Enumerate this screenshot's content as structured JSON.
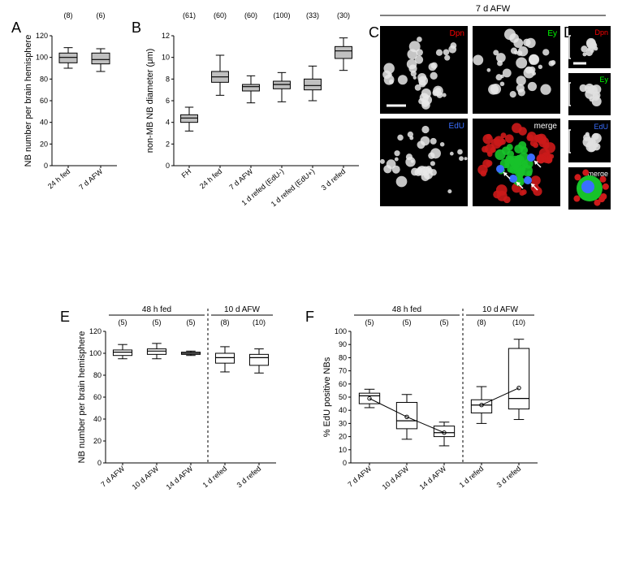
{
  "panelA": {
    "label": "A",
    "yLabel": "NB number per brain hemisphere",
    "ylim": [
      0,
      120
    ],
    "ytick_step": 20,
    "categories": [
      "24 h fed",
      "7 d AFW"
    ],
    "sample_n": [
      "(8)",
      "(6)"
    ],
    "boxes": [
      {
        "whisker_lo": 90,
        "q1": 95,
        "median": 100,
        "q3": 104,
        "whisker_hi": 109
      },
      {
        "whisker_lo": 87,
        "q1": 94,
        "median": 98,
        "q3": 104,
        "whisker_hi": 108
      }
    ],
    "box_fill": "#c0c0c0",
    "box_stroke": "#000000",
    "label_fontsize": 11
  },
  "panelB": {
    "label": "B",
    "yLabel": "non-MB NB diameter (μm)",
    "ylim": [
      0,
      12
    ],
    "ytick_step": 2,
    "categories": [
      "FH",
      "24 h fed",
      "7 d AFW",
      "1 d refed (EdU-)",
      "1 d refed (EdU+)",
      "3 d refed"
    ],
    "sample_n": [
      "(61)",
      "(60)",
      "(60)",
      "(100)",
      "(33)",
      "(30)"
    ],
    "boxes": [
      {
        "whisker_lo": 3.2,
        "q1": 4.0,
        "median": 4.4,
        "q3": 4.7,
        "whisker_hi": 5.4
      },
      {
        "whisker_lo": 6.5,
        "q1": 7.7,
        "median": 8.2,
        "q3": 8.7,
        "whisker_hi": 10.2
      },
      {
        "whisker_lo": 5.8,
        "q1": 6.9,
        "median": 7.3,
        "q3": 7.5,
        "whisker_hi": 8.3
      },
      {
        "whisker_lo": 5.9,
        "q1": 7.1,
        "median": 7.5,
        "q3": 7.8,
        "whisker_hi": 8.6
      },
      {
        "whisker_lo": 6.0,
        "q1": 7.0,
        "median": 7.4,
        "q3": 8.0,
        "whisker_hi": 9.2
      },
      {
        "whisker_lo": 8.8,
        "q1": 9.9,
        "median": 10.6,
        "q3": 11.0,
        "whisker_hi": 11.8
      }
    ],
    "box_fill": "#c0c0c0",
    "box_stroke": "#000000"
  },
  "panelC": {
    "label": "C",
    "header": "7 d AFW",
    "channels": [
      {
        "name": "Dpn",
        "color": "#ff0000"
      },
      {
        "name": "Ey",
        "color": "#00ff00"
      },
      {
        "name": "EdU",
        "color": "#3a6fff"
      },
      {
        "name": "merge",
        "color": "#ffffff"
      }
    ],
    "scale_bar": true
  },
  "panelD": {
    "label": "D",
    "channels": [
      {
        "name": "Dpn",
        "color": "#ff0000"
      },
      {
        "name": "Ey",
        "color": "#00ff00"
      },
      {
        "name": "EdU",
        "color": "#3a6fff"
      },
      {
        "name": "merge",
        "color": "#ffffff"
      }
    ]
  },
  "panelE": {
    "label": "E",
    "yLabel": "NB number per brain hemisphere",
    "ylim": [
      0,
      120
    ],
    "ytick_step": 20,
    "group1_label": "48 h fed",
    "group2_label": "10 d AFW",
    "categories": [
      "7 d AFW",
      "10 d AFW",
      "14 d AFW",
      "1 d refed",
      "3 d refed"
    ],
    "sample_n": [
      "(5)",
      "(5)",
      "(5)",
      "(8)",
      "(10)"
    ],
    "boxes": [
      {
        "whisker_lo": 95,
        "q1": 98,
        "median": 101,
        "q3": 103,
        "whisker_hi": 108
      },
      {
        "whisker_lo": 95,
        "q1": 99,
        "median": 102,
        "q3": 104,
        "whisker_hi": 109
      },
      {
        "whisker_lo": 98,
        "q1": 99,
        "median": 100,
        "q3": 101,
        "whisker_hi": 102
      },
      {
        "whisker_lo": 83,
        "q1": 91,
        "median": 96,
        "q3": 100,
        "whisker_hi": 106
      },
      {
        "whisker_lo": 82,
        "q1": 89,
        "median": 96,
        "q3": 99,
        "whisker_hi": 104
      }
    ],
    "box_fill": "#ffffff",
    "box_stroke": "#000000",
    "divider_after_index": 3
  },
  "panelF": {
    "label": "F",
    "yLabel": "% EdU positive NBs",
    "ylim": [
      0,
      100
    ],
    "ytick_step": 10,
    "group1_label": "48 h fed",
    "group2_label": "10 d AFW",
    "categories": [
      "7 d AFW",
      "10 d AFW",
      "14 d AFW",
      "1 d refed",
      "3 d refed"
    ],
    "sample_n": [
      "(5)",
      "(5)",
      "(5)",
      "(8)",
      "(10)"
    ],
    "boxes": [
      {
        "whisker_lo": 42,
        "q1": 45,
        "median": 51,
        "q3": 53,
        "whisker_hi": 56,
        "mean": 49
      },
      {
        "whisker_lo": 18,
        "q1": 26,
        "median": 32,
        "q3": 46,
        "whisker_hi": 52,
        "mean": 35
      },
      {
        "whisker_lo": 13,
        "q1": 20,
        "median": 23,
        "q3": 28,
        "whisker_hi": 31,
        "mean": 23
      },
      {
        "whisker_lo": 30,
        "q1": 38,
        "median": 44,
        "q3": 48,
        "whisker_hi": 58,
        "mean": 44
      },
      {
        "whisker_lo": 33,
        "q1": 41,
        "median": 49,
        "q3": 87,
        "whisker_hi": 94,
        "mean": 57
      }
    ],
    "trend_lines": [
      [
        0,
        1,
        2
      ],
      [
        3,
        4
      ]
    ],
    "box_fill": "#ffffff",
    "box_stroke": "#000000",
    "divider_after_index": 3
  },
  "colors": {
    "background": "#ffffff",
    "axis": "#000000",
    "text": "#000000"
  }
}
